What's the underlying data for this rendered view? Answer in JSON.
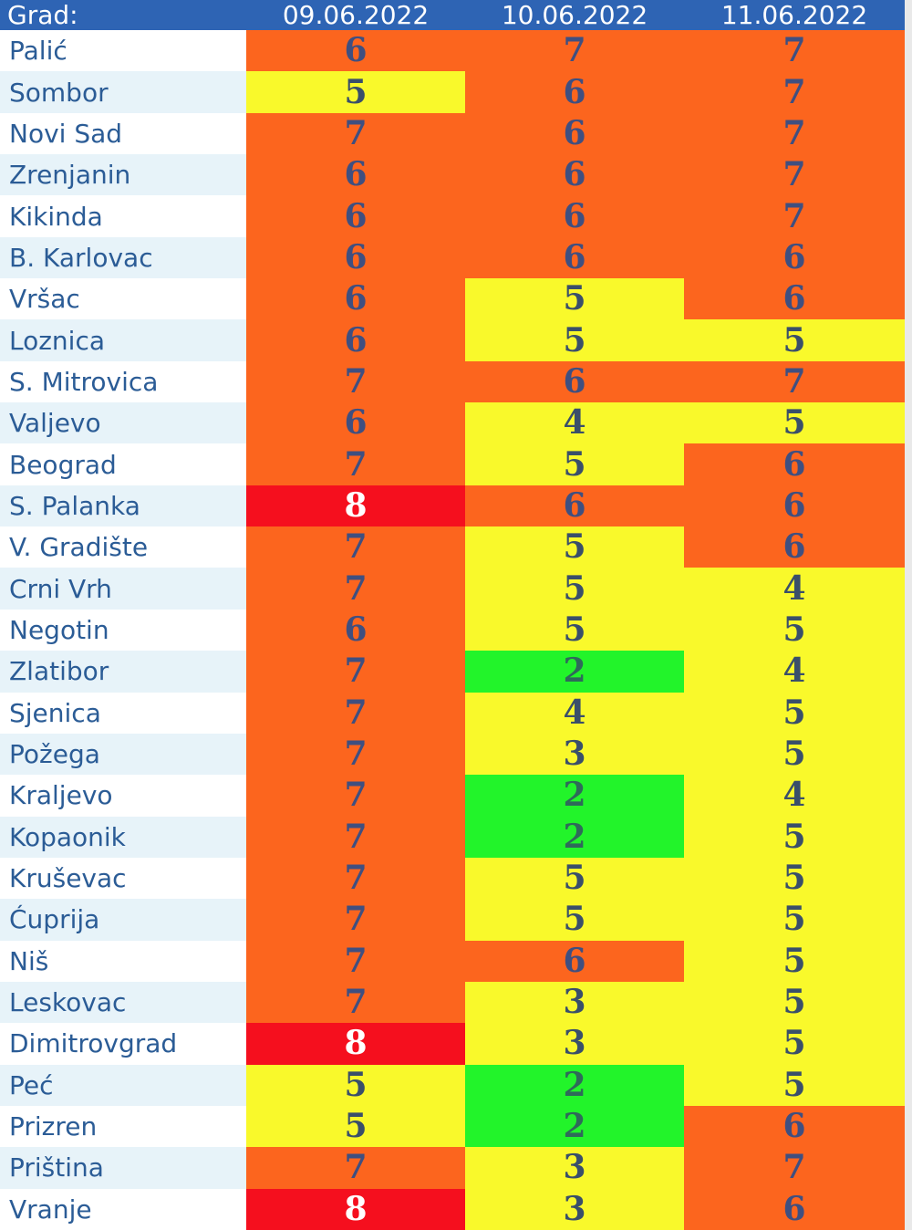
{
  "table": {
    "headers": [
      "Grad:",
      "09.06.2022",
      "10.06.2022",
      "11.06.2022"
    ],
    "rows": [
      {
        "city": "Palić",
        "values": [
          "6",
          "7",
          "7"
        ]
      },
      {
        "city": "Sombor",
        "values": [
          "5",
          "6",
          "7"
        ]
      },
      {
        "city": "Novi Sad",
        "values": [
          "7",
          "6",
          "7"
        ]
      },
      {
        "city": "Zrenjanin",
        "values": [
          "6",
          "6",
          "7"
        ]
      },
      {
        "city": "Kikinda",
        "values": [
          "6",
          "6",
          "7"
        ]
      },
      {
        "city": "B. Karlovac",
        "values": [
          "6",
          "6",
          "6"
        ]
      },
      {
        "city": "Vršac",
        "values": [
          "6",
          "5",
          "6"
        ]
      },
      {
        "city": "Loznica",
        "values": [
          "6",
          "5",
          "5"
        ]
      },
      {
        "city": "S. Mitrovica",
        "values": [
          "7",
          "6",
          "7"
        ]
      },
      {
        "city": "Valjevo",
        "values": [
          "6",
          "4",
          "5"
        ]
      },
      {
        "city": "Beograd",
        "values": [
          "7",
          "5",
          "6"
        ]
      },
      {
        "city": "S. Palanka",
        "values": [
          "8",
          "6",
          "6"
        ]
      },
      {
        "city": "V. Gradište",
        "values": [
          "7",
          "5",
          "6"
        ]
      },
      {
        "city": "Crni Vrh",
        "values": [
          "7",
          "5",
          "4"
        ]
      },
      {
        "city": "Negotin",
        "values": [
          "6",
          "5",
          "5"
        ]
      },
      {
        "city": "Zlatibor",
        "values": [
          "7",
          "2",
          "4"
        ]
      },
      {
        "city": "Sjenica",
        "values": [
          "7",
          "4",
          "5"
        ]
      },
      {
        "city": "Požega",
        "values": [
          "7",
          "3",
          "5"
        ]
      },
      {
        "city": "Kraljevo",
        "values": [
          "7",
          "2",
          "4"
        ]
      },
      {
        "city": "Kopaonik",
        "values": [
          "7",
          "2",
          "5"
        ]
      },
      {
        "city": "Kruševac",
        "values": [
          "7",
          "5",
          "5"
        ]
      },
      {
        "city": "Ćuprija",
        "values": [
          "7",
          "5",
          "5"
        ]
      },
      {
        "city": "Niš",
        "values": [
          "7",
          "6",
          "5"
        ]
      },
      {
        "city": "Leskovac",
        "values": [
          "7",
          "3",
          "5"
        ]
      },
      {
        "city": "Dimitrovgrad",
        "values": [
          "8",
          "3",
          "5"
        ]
      },
      {
        "city": "Peć",
        "values": [
          "5",
          "2",
          "5"
        ]
      },
      {
        "city": "Prizren",
        "values": [
          "5",
          "2",
          "6"
        ]
      },
      {
        "city": "Priština",
        "values": [
          "7",
          "3",
          "7"
        ]
      },
      {
        "city": "Vranje",
        "values": [
          "8",
          "3",
          "6"
        ]
      }
    ]
  },
  "colors": {
    "header_bg": "#2e64b4",
    "header_text": "#ffffff",
    "city_text": "#2b5c96",
    "row_alt_bg": "#e7f3f9",
    "level_green": "#22f42a",
    "level_yellow": "#f9f92b",
    "level_orange": "#fc651e",
    "level_red": "#f50f1e"
  }
}
